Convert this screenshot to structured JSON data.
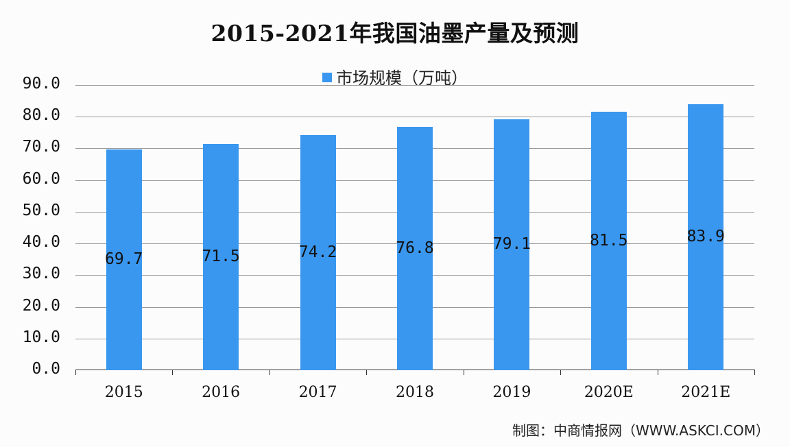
{
  "chart_data": {
    "type": "bar",
    "title": "2015-2021年我国油墨产量及预测",
    "categories": [
      "2015",
      "2016",
      "2017",
      "2018",
      "2019",
      "2020E",
      "2021E"
    ],
    "series": [
      {
        "name": "市场规模（万吨）",
        "values": [
          69.7,
          71.5,
          74.2,
          76.8,
          79.1,
          81.5,
          83.9
        ],
        "color": "#3a97ef"
      }
    ],
    "value_labels": [
      "69.7",
      "71.5",
      "74.2",
      "76.8",
      "79.1",
      "81.5",
      "83.9"
    ],
    "xlabel": "",
    "ylabel": "",
    "ylim": [
      0,
      90
    ],
    "yticks": [
      "0.0",
      "10.0",
      "20.0",
      "30.0",
      "40.0",
      "50.0",
      "60.0",
      "70.0",
      "80.0",
      "90.0"
    ],
    "grid": true,
    "legend_position": "top"
  },
  "legend": {
    "label": "市场规模（万吨）"
  },
  "source": "制图：中商情报网（WWW.ASKCI.COM）"
}
